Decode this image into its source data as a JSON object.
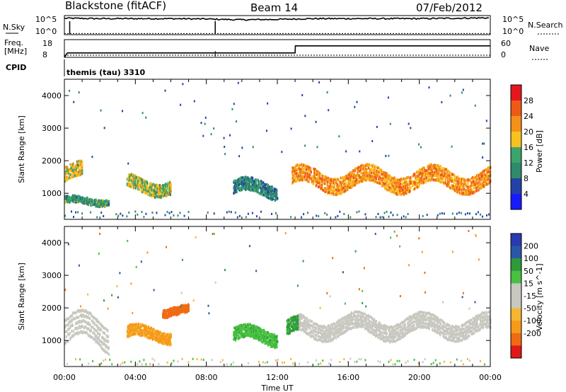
{
  "header": {
    "station": "Blackstone (fitACF)",
    "beam": "Beam 14",
    "date": "07/Feb/2012"
  },
  "side_labels": {
    "nsky": "N.Sky",
    "nsearch": "N.Search",
    "freq_line1": "Freq.",
    "freq_line2": "[MHz]",
    "nave": "Nave",
    "cpid": "CPID"
  },
  "strip_ticks": {
    "noise_left_top": "10^5",
    "noise_left_bottom": "10^0",
    "noise_right_top": "10^5",
    "noise_right_bottom": "10^0",
    "freq_top": "18",
    "freq_bottom": "8",
    "nave_top": "60",
    "nave_bottom": "0"
  },
  "cpid_text": "themis (tau) 3310",
  "colors": {
    "power_scale": [
      "#1a1aff",
      "#2342a8",
      "#2f8a6a",
      "#3aa46a",
      "#f7c21f",
      "#f5901a",
      "#ee5a14",
      "#e6161e"
    ],
    "velocity_scale": [
      "#e01818",
      "#f06a14",
      "#f59a1a",
      "#f7b631",
      "#c8c8c0",
      "#c8c8c0",
      "#48c040",
      "#2f9a3a",
      "#2a58a8",
      "#2a3ab0"
    ],
    "ground_scatter": "#b9b9b1"
  },
  "chart_data": [
    {
      "type": "line",
      "name": "noise-strip",
      "xlabel": "",
      "series": [
        {
          "name": "N.Sky",
          "x": [
            "00:00",
            "02:00",
            "04:00",
            "06:00",
            "08:00",
            "10:00",
            "12:00",
            "14:00",
            "16:00",
            "18:00",
            "20:00",
            "22:00",
            "24:00"
          ],
          "values": [
            4.3,
            4.2,
            4.2,
            4.2,
            4.1,
            3.9,
            4.0,
            4.2,
            4.2,
            4.2,
            4.2,
            4.3,
            4.4
          ]
        },
        {
          "name": "N.Search",
          "x": [
            "00:00",
            "24:00"
          ],
          "values": [
            0.3,
            0.3
          ]
        }
      ],
      "ylim": [
        0,
        5
      ]
    },
    {
      "type": "line",
      "name": "freq-nave-strip",
      "series": [
        {
          "name": "Freq.",
          "x": [
            "00:00",
            "00:10",
            "13:00",
            "13:01",
            "24:00"
          ],
          "values": [
            8,
            10.5,
            10.5,
            14.5,
            14.5
          ]
        },
        {
          "name": "Nave",
          "x": [
            "00:00",
            "24:00"
          ],
          "values": [
            10,
            10
          ]
        }
      ],
      "ylim": [
        8,
        18
      ]
    },
    {
      "type": "heatmap",
      "name": "power-panel",
      "ylabel": "Slant Range [km]",
      "xlabel": "Time UT",
      "x_ticks": [
        "00:00",
        "04:00",
        "08:00",
        "12:00",
        "16:00",
        "20:00",
        "00:00"
      ],
      "y_ticks": [
        "1000",
        "2000",
        "3000",
        "4000"
      ],
      "ylim": [
        200,
        4500
      ],
      "xlim_hours": [
        0,
        24
      ],
      "colorbar": {
        "label": "Power [dB]",
        "ticks": [
          "4",
          "8",
          "12",
          "16",
          "20",
          "24",
          "28"
        ],
        "range": [
          0,
          32
        ]
      },
      "features": [
        {
          "t": [
            0.0,
            1.0
          ],
          "range": [
            1200,
            2000
          ],
          "level": 16
        },
        {
          "t": [
            0.0,
            2.5
          ],
          "range": [
            600,
            900
          ],
          "level": 10
        },
        {
          "t": [
            3.5,
            6.0
          ],
          "range": [
            900,
            1600
          ],
          "level": 14
        },
        {
          "t": [
            9.5,
            12.0
          ],
          "range": [
            800,
            1500
          ],
          "level": 8
        },
        {
          "t": [
            12.8,
            24.0
          ],
          "range": [
            1000,
            1900
          ],
          "level": 20
        }
      ]
    },
    {
      "type": "heatmap",
      "name": "velocity-panel",
      "ylabel": "Slant Range [km]",
      "xlabel": "Time UT",
      "x_ticks": [
        "00:00",
        "04:00",
        "08:00",
        "12:00",
        "16:00",
        "20:00",
        "00:00"
      ],
      "y_ticks": [
        "1000",
        "2000",
        "3000",
        "4000"
      ],
      "ylim": [
        200,
        4500
      ],
      "xlim_hours": [
        0,
        24
      ],
      "colorbar": {
        "label": "Velocity [m s^-1]",
        "ticks": [
          "200",
          "100",
          "50",
          "15",
          "-15",
          "-50",
          "-100",
          "-200"
        ],
        "range": [
          -250,
          250
        ]
      },
      "features": [
        {
          "t": [
            0.0,
            2.5
          ],
          "range": [
            600,
            2000
          ],
          "velocity": 0
        },
        {
          "t": [
            3.5,
            6.0
          ],
          "range": [
            900,
            1500
          ],
          "velocity": -60
        },
        {
          "t": [
            5.5,
            7.0
          ],
          "range": [
            1700,
            2100
          ],
          "velocity": -150
        },
        {
          "t": [
            9.5,
            12.0
          ],
          "range": [
            800,
            1500
          ],
          "velocity": 40
        },
        {
          "t": [
            12.5,
            13.2
          ],
          "range": [
            1000,
            1800
          ],
          "velocity": 60
        },
        {
          "t": [
            13.2,
            24.0
          ],
          "range": [
            1000,
            1900
          ],
          "velocity": 0
        }
      ]
    }
  ]
}
